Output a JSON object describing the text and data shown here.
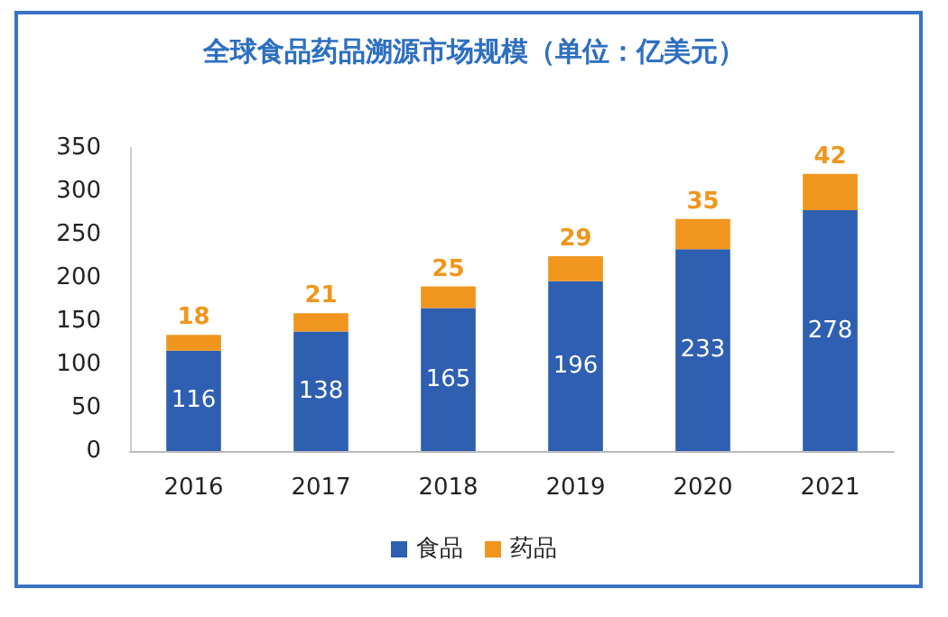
{
  "chart_data": {
    "type": "bar",
    "title": "全球食品药品溯源市场规模（单位：亿美元）",
    "categories": [
      "2016",
      "2017",
      "2018",
      "2019",
      "2020",
      "2021"
    ],
    "series": [
      {
        "name": "食品",
        "color": "#2e5fb0",
        "values": [
          116,
          138,
          165,
          196,
          233,
          278
        ]
      },
      {
        "name": "药品",
        "color": "#f0961e",
        "values": [
          18,
          21,
          25,
          29,
          35,
          42
        ]
      }
    ],
    "stacked": true,
    "data_labels": true,
    "ylim": [
      0,
      350
    ],
    "yticks": [
      0,
      50,
      100,
      150,
      200,
      250,
      300,
      350
    ],
    "grid": false,
    "legend": "bottom"
  }
}
